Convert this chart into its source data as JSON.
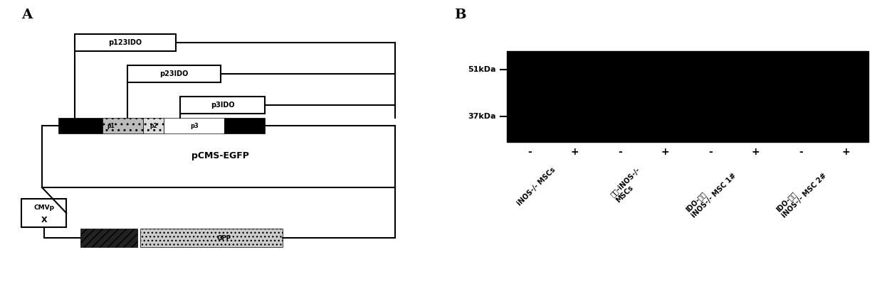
{
  "panel_A_label": "A",
  "panel_B_label": "B",
  "background_color": "#ffffff",
  "p1_label": "p123IDO",
  "p2_label": "p23IDO",
  "p3_label": "p3IDO",
  "pcms_label": "pCMS-EGFP",
  "cmvp_label": "CMVp",
  "band_label_51": "51kDa",
  "band_label_37": "37kDa",
  "plus_minus_labels": [
    "-",
    "+",
    "-",
    "+",
    "-",
    "+",
    "-",
    "+"
  ],
  "group_labels": [
    "iNOS-/- MSCs",
    "挪体-iNOS-/-\nMSCs",
    "IDO-表达\niNOS-/- MSC 1#",
    "IDO-表达\niNOS-/- MSC 2#"
  ]
}
